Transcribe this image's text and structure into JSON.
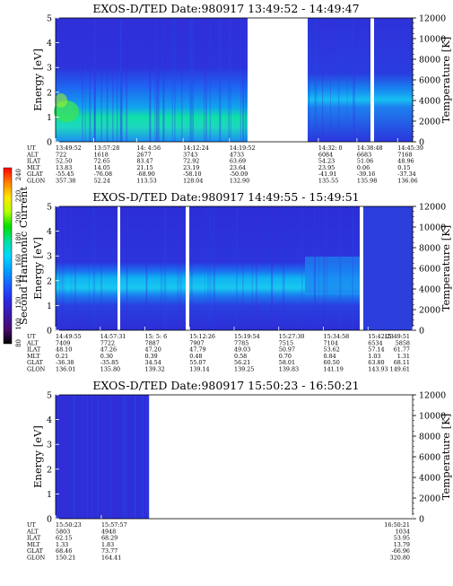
{
  "colorbar": {
    "label": "Second Harmonic Current",
    "ticks": [
      "240",
      "220",
      "200",
      "180",
      "160",
      "140",
      "120",
      "100",
      "80"
    ],
    "colors": [
      "#ff0000",
      "#ff8000",
      "#ffe600",
      "#b8ff00",
      "#00e000",
      "#00e0a0",
      "#00d8ff",
      "#00a0ff",
      "#1c5cff",
      "#2a2ae6",
      "#3a1aa8",
      "#4a0a70",
      "#000000"
    ]
  },
  "chart_data": [
    {
      "type": "heatmap",
      "title": "EXOS-D/TED   Date:980917  13:49:52 - 14:49:47",
      "ylabel": "Energy [eV]",
      "ylim": [
        0,
        5
      ],
      "yticks": [
        "0",
        "1",
        "2",
        "3",
        "4",
        "5"
      ],
      "y2label": "Temperature [K]",
      "y2lim": [
        0,
        12000
      ],
      "y2ticks": [
        "0",
        "2000",
        "4000",
        "6000",
        "8000",
        "10000",
        "12000"
      ],
      "row_labels": [
        "UT",
        "ALT",
        "ILAT",
        "MLT",
        "GLAT",
        "GLON"
      ],
      "columns": [
        {
          "f": 0.0,
          "vals": [
            "13:49:52",
            "722",
            "52.50",
            "13.83",
            "-55.45",
            "357.38"
          ]
        },
        {
          "f": 0.107,
          "vals": [
            "13:57:28",
            "1618",
            "72.65",
            "14.05",
            "-76.08",
            "52.24"
          ]
        },
        {
          "f": 0.227,
          "vals": [
            "14: 4:56",
            "2677",
            "83.47",
            "21.15",
            "-68.90",
            "113.53"
          ]
        },
        {
          "f": 0.357,
          "vals": [
            "14:12:24",
            "3743",
            "72.92",
            "23.19",
            "-58.10",
            "128.04"
          ]
        },
        {
          "f": 0.487,
          "vals": [
            "14:19:52",
            "4733",
            "63.69",
            "23.64",
            "-50.09",
            "132.90"
          ]
        },
        {
          "f": 0.736,
          "vals": [
            "14:32: 0",
            "6084",
            "54.23",
            "23.95",
            "-41.91",
            "135.55"
          ]
        },
        {
          "f": 0.844,
          "vals": [
            "14:38:48",
            "6683",
            "51.06",
            "0.06",
            "-39.16",
            "135.98"
          ]
        },
        {
          "f": 0.958,
          "vals": [
            "14:45:39",
            "7168",
            "48.96",
            "0.15",
            "-37.34",
            "136.06"
          ]
        }
      ]
    },
    {
      "type": "heatmap",
      "title": "EXOS-D/TED   Date:980917  14:49:55 - 15:49:51",
      "ylabel": "Energy [eV]",
      "ylim": [
        0,
        5
      ],
      "yticks": [
        "0",
        "1",
        "2",
        "3",
        "4",
        "5"
      ],
      "y2label": "Temperature [K]",
      "y2lim": [
        0,
        12000
      ],
      "y2ticks": [
        "0",
        "2000",
        "4000",
        "6000",
        "8000",
        "10000",
        "12000"
      ],
      "row_labels": [
        "UT",
        "ALT",
        "ILAT",
        "MLT",
        "GLAT",
        "GLON"
      ],
      "columns": [
        {
          "f": 0.0,
          "vals": [
            "14:49:55",
            "7409",
            "48.10",
            "0.21",
            "-36.38",
            "136.01"
          ]
        },
        {
          "f": 0.125,
          "vals": [
            "14:57:31",
            "7722",
            "47.26",
            "0.30",
            "-35.85",
            "135.80"
          ]
        },
        {
          "f": 0.25,
          "vals": [
            "15: 5: 6",
            "7887",
            "47.20",
            "0.39",
            "34.54",
            "139.32"
          ]
        },
        {
          "f": 0.375,
          "vals": [
            "15:12:26",
            "7907",
            "47.79",
            "0.48",
            "55.07",
            "139.14"
          ]
        },
        {
          "f": 0.5,
          "vals": [
            "15:19:54",
            "7785",
            "49.03",
            "0.58",
            "56.21",
            "139.25"
          ]
        },
        {
          "f": 0.625,
          "vals": [
            "15:27:30",
            "7515",
            "50.97",
            "0.70",
            "58.01",
            "139.83"
          ]
        },
        {
          "f": 0.75,
          "vals": [
            "15:34:58",
            "7104",
            "53.62",
            "0.84",
            "60.50",
            "141.19"
          ]
        },
        {
          "f": 0.875,
          "vals": [
            "15:42:23",
            "6534",
            "57.14",
            "1.03",
            "63.80",
            "143.93"
          ]
        },
        {
          "f": 1.0,
          "vals": [
            "15:49:51",
            "5858",
            "61.77",
            "1.31",
            "68.11",
            "149.61"
          ]
        }
      ]
    },
    {
      "type": "heatmap",
      "title": "EXOS-D/TED   Date:980917  15:50:23 - 16:50:21",
      "ylabel": "Energy [eV]",
      "ylim": [
        0,
        5
      ],
      "yticks": [
        "0",
        "1",
        "2",
        "3",
        "4",
        "5"
      ],
      "y2label": "Temperature [K]",
      "y2lim": [
        0,
        12000
      ],
      "y2ticks": [
        "0",
        "2000",
        "4000",
        "6000",
        "8000",
        "10000",
        "12000"
      ],
      "row_labels": [
        "UT",
        "ALT",
        "ILAT",
        "MLT",
        "GLAT",
        "GLON"
      ],
      "columns": [
        {
          "f": 0.0,
          "vals": [
            "15:50:23",
            "5803",
            "62.15",
            "1.33",
            "68.46",
            "150.21"
          ]
        },
        {
          "f": 0.128,
          "vals": [
            "15:57:57",
            "4948",
            "68.29",
            "1.83",
            "73.77",
            "164.41"
          ]
        },
        {
          "f": 1.0,
          "vals": [
            "16:50:21",
            "1034",
            "53.95",
            "13.79",
            "-66.96",
            "320.80"
          ]
        }
      ]
    }
  ]
}
